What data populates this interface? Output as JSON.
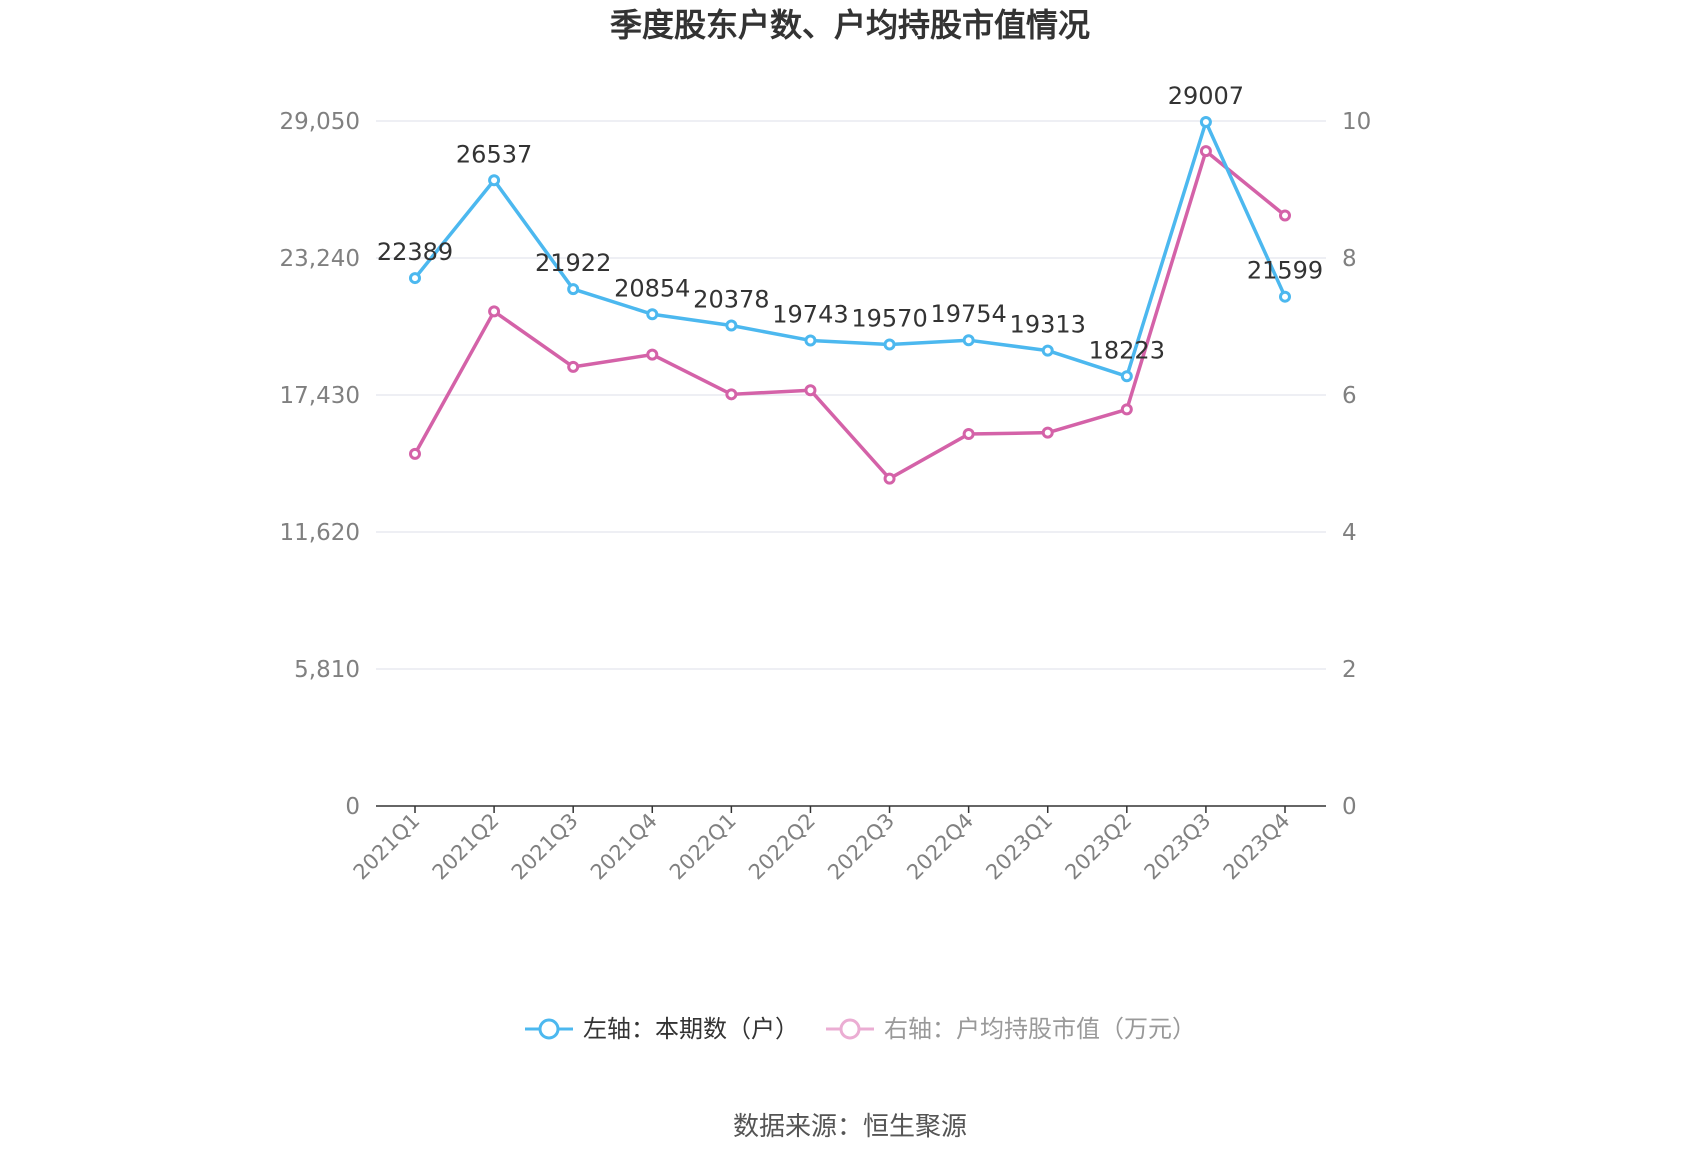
{
  "title": "季度股东户数、户均持股市值情况",
  "source": "数据来源：恒生聚源",
  "colors": {
    "left_series": "#4cb8ef",
    "right_series": "#d462a8",
    "right_series_legend": "#ebadd3"
  },
  "chart_data": {
    "type": "line",
    "title": "季度股东户数、户均持股市值情况",
    "categories": [
      "2021Q1",
      "2021Q2",
      "2021Q3",
      "2021Q4",
      "2022Q1",
      "2022Q2",
      "2022Q3",
      "2022Q4",
      "2023Q1",
      "2023Q2",
      "2023Q3",
      "2023Q4"
    ],
    "left_axis": {
      "range": [
        0,
        29050
      ],
      "ticks": [
        "0",
        "5,810",
        "11,620",
        "17,430",
        "23,240",
        "29,050"
      ]
    },
    "right_axis": {
      "range": [
        0,
        10
      ],
      "ticks": [
        "0",
        "2",
        "4",
        "6",
        "8",
        "10"
      ]
    },
    "grid": true,
    "legend_position": "bottom",
    "series": [
      {
        "name": "左轴：本期数（户）",
        "axis": "left",
        "values": [
          22389,
          26537,
          21922,
          20854,
          20378,
          19743,
          19570,
          19754,
          19313,
          18223,
          29007,
          21599
        ],
        "labels": [
          "22389",
          "26537",
          "21922",
          "20854",
          "20378",
          "19743",
          "19570",
          "19754",
          "19313",
          "18223",
          "29007",
          "21599"
        ]
      },
      {
        "name": "右轴：户均持股市值（万元）",
        "axis": "right",
        "values": [
          5.14,
          7.22,
          6.41,
          6.59,
          6.01,
          6.07,
          4.78,
          5.43,
          5.45,
          5.79,
          9.56,
          8.62
        ]
      }
    ]
  }
}
